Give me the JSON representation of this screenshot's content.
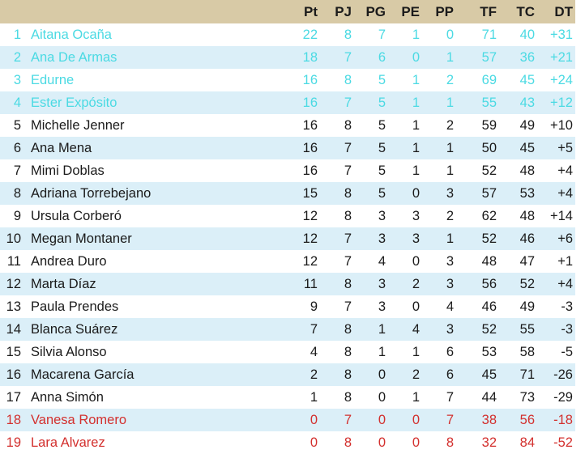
{
  "colors": {
    "header_bg": "#d8caa6",
    "header_text": "#1b1b1b",
    "row_alt_bg": "#dbeff8",
    "normal_text": "#1a1a1a",
    "promotion_text": "#4bdae3",
    "relegation_text": "#d3302e"
  },
  "chart_data": {
    "type": "table",
    "title": "",
    "columns": [
      "Pt",
      "PJ",
      "PG",
      "PE",
      "PP",
      "TF",
      "TC",
      "DT"
    ],
    "legend": {
      "promotion": "ranks 1-4 shown in cyan",
      "normal": "ranks 5-17 shown in black",
      "relegation": "ranks 18-19 shown in red"
    },
    "rows": [
      {
        "rank": "1",
        "name": "Aitana Ocaña",
        "values": [
          "22",
          "8",
          "7",
          "1",
          "0",
          "71",
          "40",
          "+31"
        ],
        "status": "promotion"
      },
      {
        "rank": "2",
        "name": "Ana De Armas",
        "values": [
          "18",
          "7",
          "6",
          "0",
          "1",
          "57",
          "36",
          "+21"
        ],
        "status": "promotion"
      },
      {
        "rank": "3",
        "name": "Edurne",
        "values": [
          "16",
          "8",
          "5",
          "1",
          "2",
          "69",
          "45",
          "+24"
        ],
        "status": "promotion"
      },
      {
        "rank": "4",
        "name": "Ester Expósito",
        "values": [
          "16",
          "7",
          "5",
          "1",
          "1",
          "55",
          "43",
          "+12"
        ],
        "status": "promotion"
      },
      {
        "rank": "5",
        "name": "Michelle Jenner",
        "values": [
          "16",
          "8",
          "5",
          "1",
          "2",
          "59",
          "49",
          "+10"
        ],
        "status": "normal"
      },
      {
        "rank": "6",
        "name": "Ana Mena",
        "values": [
          "16",
          "7",
          "5",
          "1",
          "1",
          "50",
          "45",
          "+5"
        ],
        "status": "normal"
      },
      {
        "rank": "7",
        "name": "Mimi Doblas",
        "values": [
          "16",
          "7",
          "5",
          "1",
          "1",
          "52",
          "48",
          "+4"
        ],
        "status": "normal"
      },
      {
        "rank": "8",
        "name": "Adriana Torrebejano",
        "values": [
          "15",
          "8",
          "5",
          "0",
          "3",
          "57",
          "53",
          "+4"
        ],
        "status": "normal"
      },
      {
        "rank": "9",
        "name": "Ursula Corberó",
        "values": [
          "12",
          "8",
          "3",
          "3",
          "2",
          "62",
          "48",
          "+14"
        ],
        "status": "normal"
      },
      {
        "rank": "10",
        "name": "Megan Montaner",
        "values": [
          "12",
          "7",
          "3",
          "3",
          "1",
          "52",
          "46",
          "+6"
        ],
        "status": "normal"
      },
      {
        "rank": "11",
        "name": "Andrea Duro",
        "values": [
          "12",
          "7",
          "4",
          "0",
          "3",
          "48",
          "47",
          "+1"
        ],
        "status": "normal"
      },
      {
        "rank": "12",
        "name": "Marta Díaz",
        "values": [
          "11",
          "8",
          "3",
          "2",
          "3",
          "56",
          "52",
          "+4"
        ],
        "status": "normal"
      },
      {
        "rank": "13",
        "name": "Paula Prendes",
        "values": [
          "9",
          "7",
          "3",
          "0",
          "4",
          "46",
          "49",
          "-3"
        ],
        "status": "normal"
      },
      {
        "rank": "14",
        "name": "Blanca Suárez",
        "values": [
          "7",
          "8",
          "1",
          "4",
          "3",
          "52",
          "55",
          "-3"
        ],
        "status": "normal"
      },
      {
        "rank": "15",
        "name": "Silvia Alonso",
        "values": [
          "4",
          "8",
          "1",
          "1",
          "6",
          "53",
          "58",
          "-5"
        ],
        "status": "normal"
      },
      {
        "rank": "16",
        "name": "Macarena García",
        "values": [
          "2",
          "8",
          "0",
          "2",
          "6",
          "45",
          "71",
          "-26"
        ],
        "status": "normal"
      },
      {
        "rank": "17",
        "name": "Anna Simón",
        "values": [
          "1",
          "8",
          "0",
          "1",
          "7",
          "44",
          "73",
          "-29"
        ],
        "status": "normal"
      },
      {
        "rank": "18",
        "name": "Vanesa Romero",
        "values": [
          "0",
          "7",
          "0",
          "0",
          "7",
          "38",
          "56",
          "-18"
        ],
        "status": "relegation"
      },
      {
        "rank": "19",
        "name": "Lara Alvarez",
        "values": [
          "0",
          "8",
          "0",
          "0",
          "8",
          "32",
          "84",
          "-52"
        ],
        "status": "relegation"
      }
    ]
  }
}
